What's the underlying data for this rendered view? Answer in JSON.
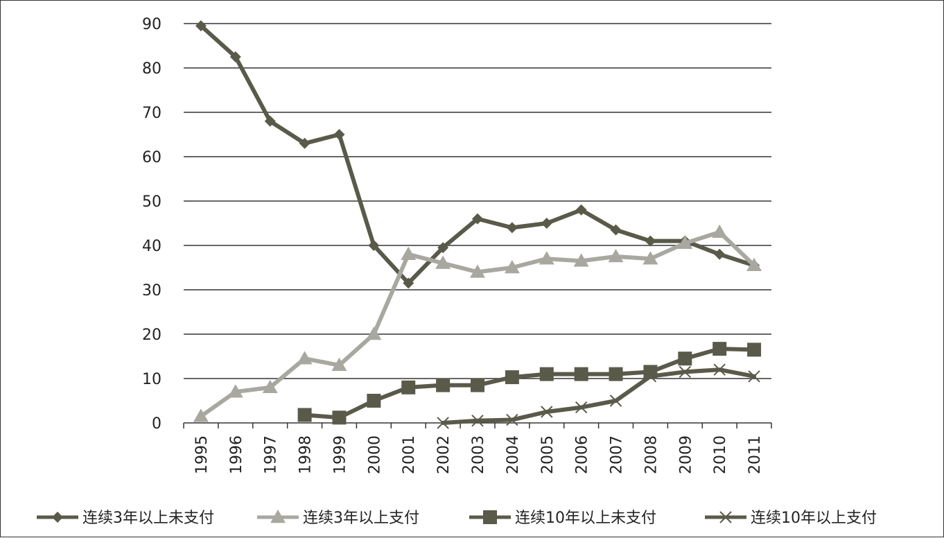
{
  "chart_data": {
    "type": "line",
    "title": "",
    "xlabel": "",
    "ylabel": "",
    "x": [
      "1995",
      "1996",
      "1997",
      "1998",
      "1999",
      "2000",
      "2001",
      "2002",
      "2003",
      "2004",
      "2005",
      "2006",
      "2007",
      "2008",
      "2009",
      "2010",
      "2011"
    ],
    "ylim": [
      0,
      90
    ],
    "yticks": [
      0,
      10,
      20,
      30,
      40,
      50,
      60,
      70,
      80,
      90
    ],
    "grid": true,
    "legend_position": "bottom",
    "series": [
      {
        "name": "连续3年以上未支付",
        "color": "#5a5a4a",
        "marker": "diamond",
        "values": [
          89.5,
          82.5,
          68,
          63,
          65,
          40,
          31.5,
          39.5,
          46,
          44,
          45,
          48,
          43.5,
          41,
          41,
          38,
          35.5
        ]
      },
      {
        "name": "连续3年以上支付",
        "color": "#a8a8a0",
        "marker": "triangle",
        "values": [
          1.5,
          7,
          8,
          14.5,
          13,
          20,
          38,
          36,
          34,
          35,
          37,
          36.5,
          37.5,
          37,
          40.5,
          43,
          35.5
        ]
      },
      {
        "name": "连续10年以上未支付",
        "color": "#5a5a4a",
        "marker": "square",
        "values": [
          null,
          null,
          null,
          1.8,
          1.2,
          5,
          8,
          8.5,
          8.5,
          10.3,
          11,
          11,
          11,
          11.5,
          14.5,
          16.7,
          16.5
        ]
      },
      {
        "name": "连续10年以上支付",
        "color": "#5a5a4a",
        "marker": "x",
        "values": [
          null,
          null,
          null,
          null,
          null,
          null,
          null,
          0,
          0.5,
          0.7,
          2.5,
          3.5,
          5,
          10.5,
          11.5,
          12,
          10.5
        ]
      }
    ]
  }
}
